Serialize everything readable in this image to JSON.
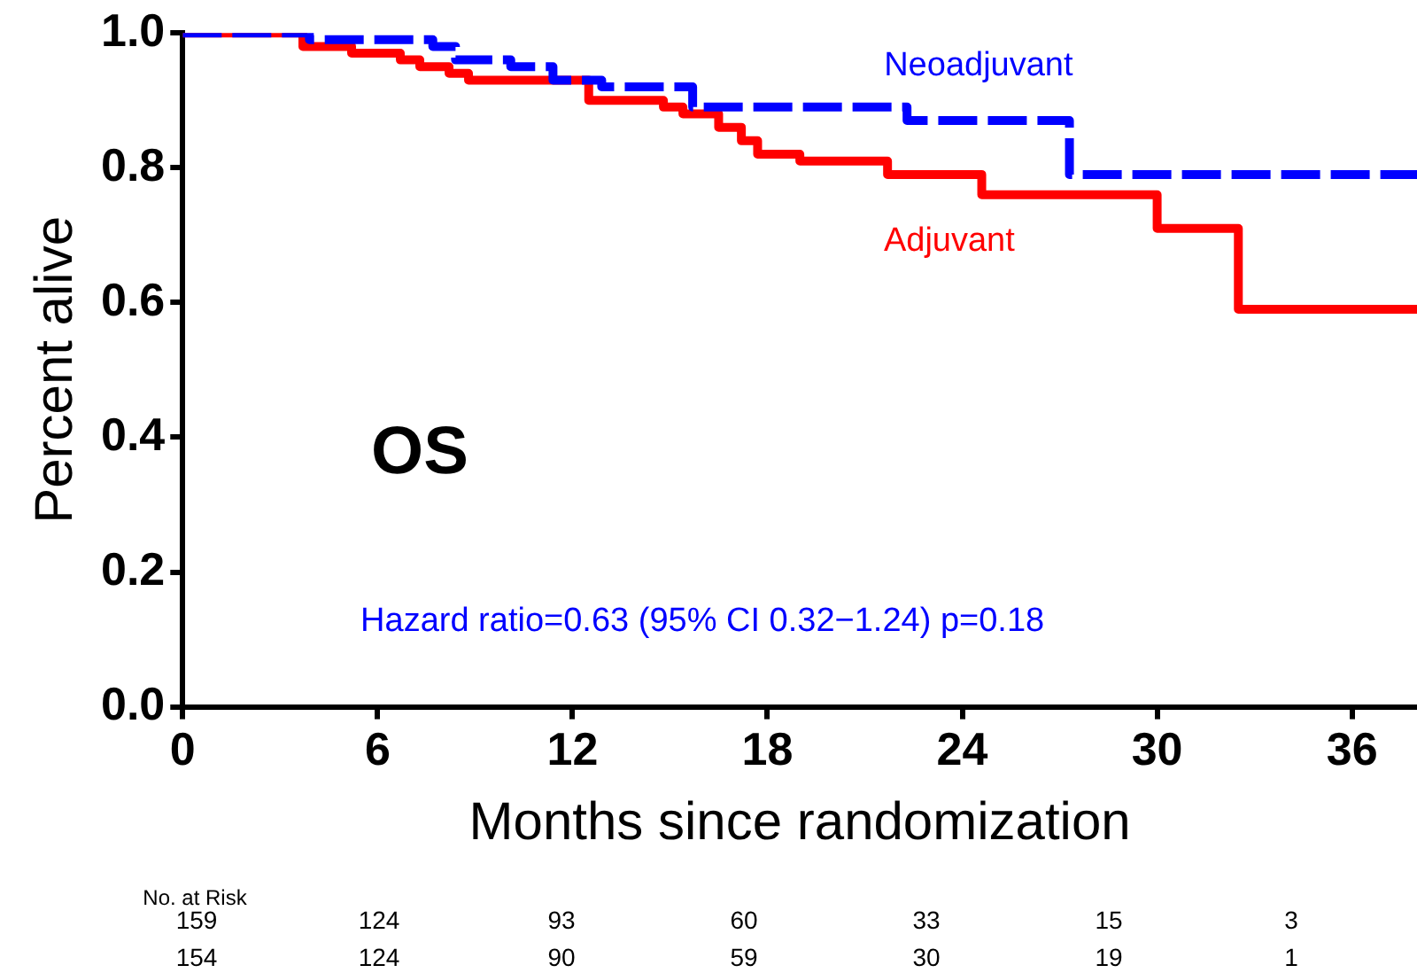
{
  "chart_data": {
    "type": "step",
    "xlabel": "Months since randomization",
    "ylabel": "Percent alive",
    "xlim": [
      0,
      38
    ],
    "xticks": [
      0,
      6,
      12,
      18,
      24,
      30,
      36
    ],
    "ylim": [
      0,
      1
    ],
    "yticks": [
      {
        "value": 0,
        "label": "0.0"
      },
      {
        "value": 0.2,
        "label": "0.2"
      },
      {
        "value": 0.4,
        "label": "0.4"
      },
      {
        "value": 0.6,
        "label": "0.6"
      },
      {
        "value": 0.8,
        "label": "0.8"
      },
      {
        "value": 1,
        "label": "1.0"
      }
    ],
    "grid": false,
    "legend": false,
    "marker": "none",
    "series": [
      {
        "name": "Neoadjuvant",
        "color": "#0000ff",
        "line_style": "dashed",
        "x": [
          0,
          3.9,
          4.8,
          7.7,
          8.4,
          10.1,
          11.4,
          12.9,
          15.7,
          22.3,
          27.3,
          38
        ],
        "values": [
          1,
          0.99,
          0.99,
          0.98,
          0.96,
          0.95,
          0.93,
          0.92,
          0.89,
          0.87,
          0.79,
          0.79
        ]
      },
      {
        "name": "Adjuvant",
        "color": "#ff0000",
        "line_style": "solid",
        "x": [
          0,
          3.7,
          4.9,
          5.2,
          6.7,
          7.3,
          8.2,
          8.8,
          12.5,
          14.8,
          15.4,
          16.5,
          17.2,
          17.7,
          19.0,
          21.7,
          24.6,
          30.0,
          32.5,
          38
        ],
        "values": [
          1,
          0.98,
          0.98,
          0.97,
          0.96,
          0.95,
          0.94,
          0.93,
          0.9,
          0.89,
          0.88,
          0.86,
          0.84,
          0.82,
          0.81,
          0.79,
          0.76,
          0.71,
          0.59,
          0.59
        ]
      }
    ],
    "annotations": [
      "OS",
      "Hazard ratio=0.63 (95% CI 0.32−1.24) p=0.18",
      "No. at Risk",
      "159 124 93 60 33 15 3",
      "154 124 90 59 30 19 1"
    ]
  }
}
